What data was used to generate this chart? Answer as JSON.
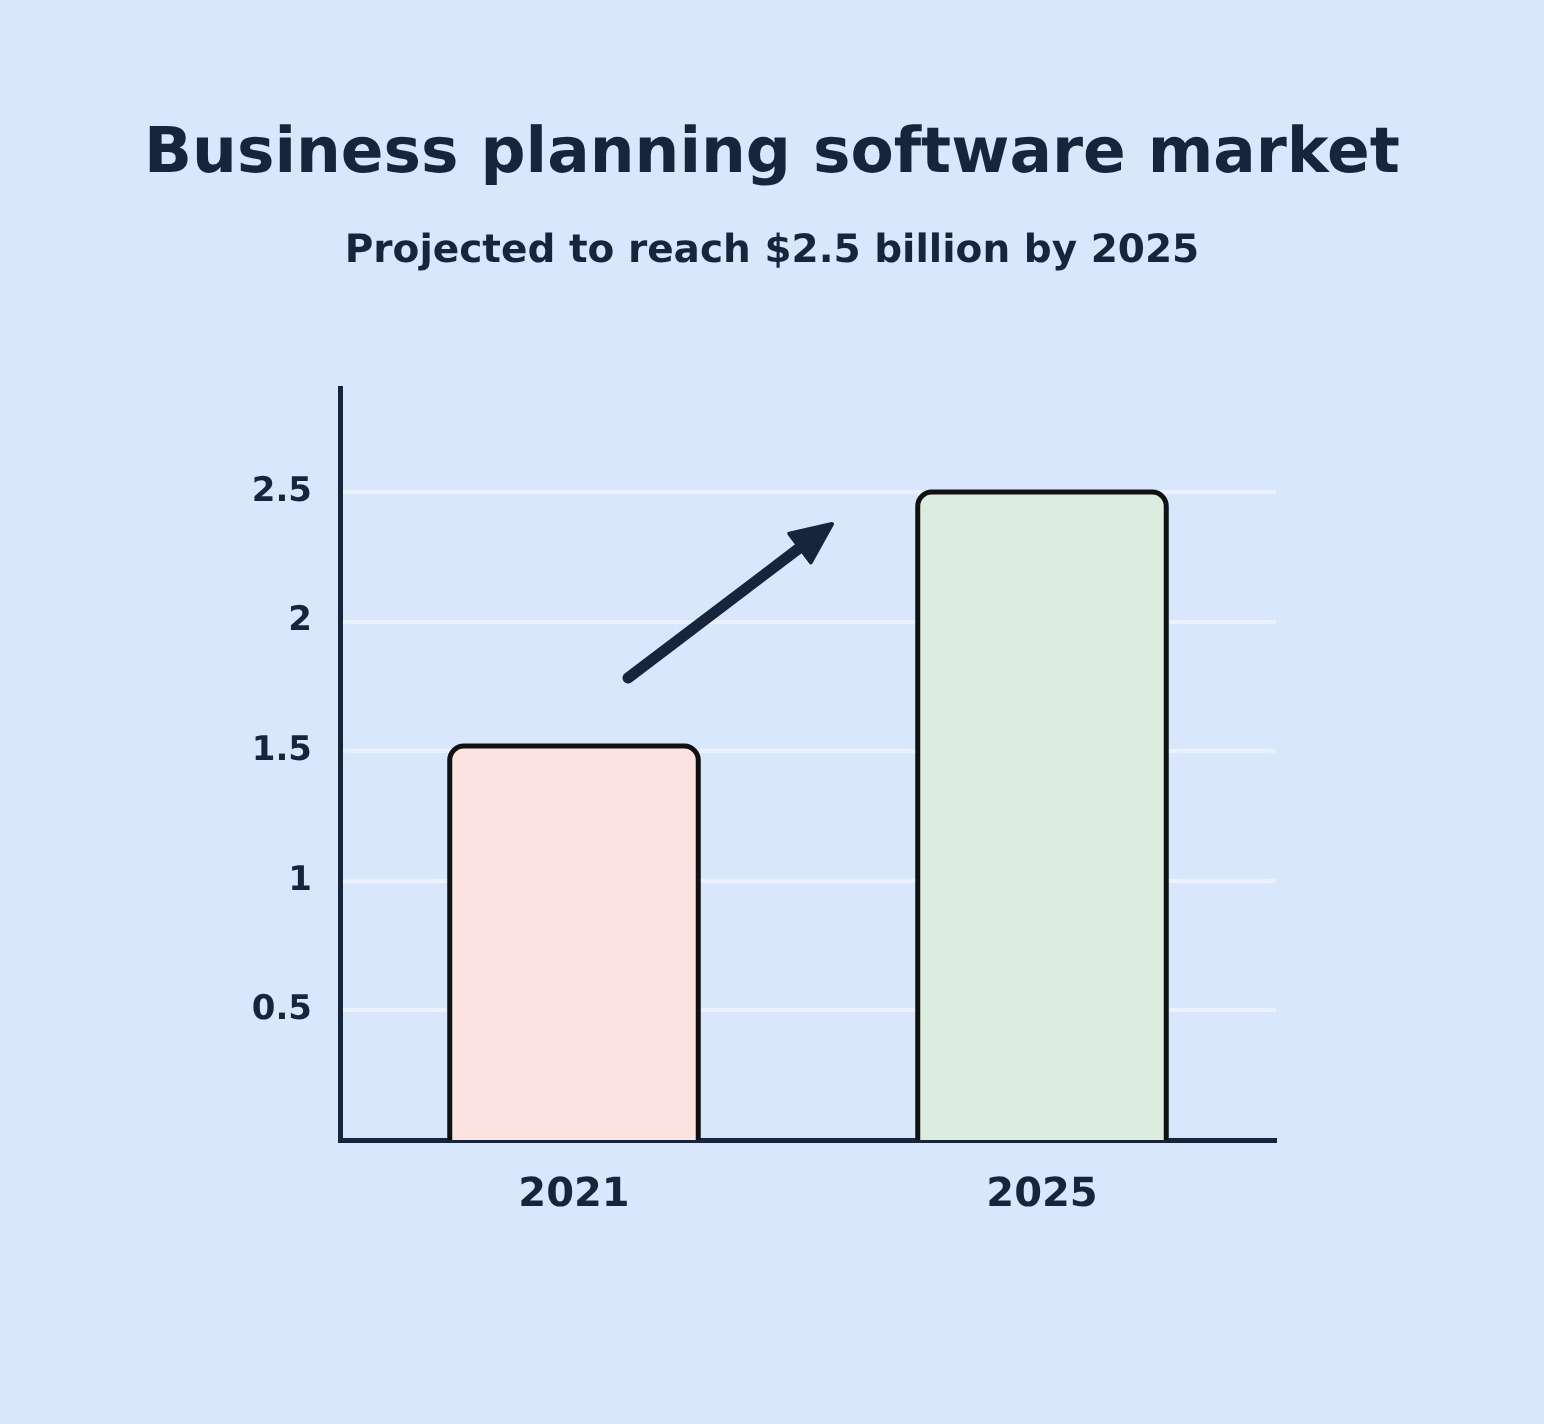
{
  "chart_data": {
    "type": "bar",
    "title": "Business planning software market",
    "subtitle": "Projected to reach $2.5 billion by 2025",
    "categories": [
      "2021",
      "2025"
    ],
    "values": [
      1.52,
      2.5
    ],
    "colors": [
      "#fde3df",
      "#dcecdf"
    ],
    "ylim": [
      0,
      2.9
    ],
    "yticks": [
      0.5,
      1,
      1.5,
      2,
      2.5
    ],
    "grid": "y"
  }
}
